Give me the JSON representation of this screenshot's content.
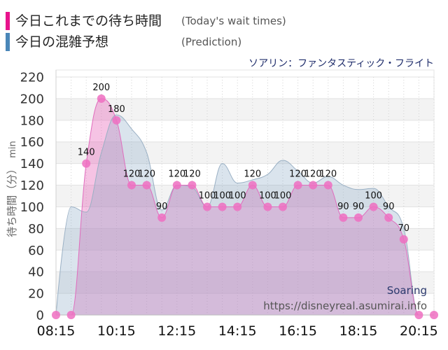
{
  "chart_data": {
    "type": "area",
    "title": "ソアリン：ファンタスティック・フライト",
    "x": [
      "08:15",
      "08:45",
      "09:15",
      "09:45",
      "10:15",
      "10:45",
      "11:15",
      "11:45",
      "12:15",
      "12:45",
      "13:15",
      "13:45",
      "14:15",
      "14:45",
      "15:15",
      "15:45",
      "16:15",
      "16:45",
      "17:15",
      "17:45",
      "18:15",
      "18:45",
      "19:15",
      "19:45",
      "20:15",
      "20:45"
    ],
    "xticks": [
      "08:15",
      "10:15",
      "12:15",
      "14:15",
      "16:15",
      "18:15",
      "20:15"
    ],
    "ylabel": "待ち時間（分）",
    "yunit": "min",
    "ylim": [
      0,
      220
    ],
    "yticks": [
      0,
      20,
      40,
      60,
      80,
      100,
      120,
      140,
      160,
      180,
      200,
      220
    ],
    "grid": true,
    "legend": "top-left",
    "series": [
      {
        "name": "今日これまでの待ち時間",
        "name_en": "(Today's wait times)",
        "color": "#e8148c",
        "data_labels": true,
        "values": [
          0,
          0,
          140,
          200,
          180,
          120,
          120,
          90,
          120,
          120,
          100,
          100,
          100,
          120,
          100,
          100,
          120,
          120,
          120,
          90,
          90,
          100,
          90,
          70,
          0,
          0
        ]
      },
      {
        "name": "今日の混雑予想",
        "name_en": "(Prediction)",
        "color": "#4a86b8",
        "data_labels": false,
        "values": [
          0,
          100,
          95,
          150,
          185,
          172,
          150,
          97,
          120,
          118,
          100,
          140,
          122,
          125,
          130,
          143,
          133,
          122,
          128,
          120,
          116,
          117,
          100,
          80,
          0,
          0
        ]
      }
    ]
  },
  "watermark": {
    "name": "Soaring",
    "url": "https://disneyreal.asumirai.info"
  }
}
